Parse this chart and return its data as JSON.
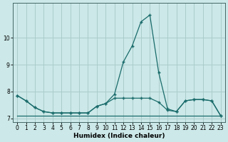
{
  "title": "",
  "xlabel": "Humidex (Indice chaleur)",
  "background_color": "#cce8e8",
  "grid_color": "#aacccc",
  "line_color": "#1a6b6b",
  "x": [
    0,
    1,
    2,
    3,
    4,
    5,
    6,
    7,
    8,
    9,
    10,
    11,
    12,
    13,
    14,
    15,
    16,
    17,
    18,
    19,
    20,
    21,
    22,
    23
  ],
  "y_flat": [
    7.1,
    7.1,
    7.1,
    7.1,
    7.1,
    7.1,
    7.1,
    7.1,
    7.1,
    7.1,
    7.1,
    7.1,
    7.1,
    7.1,
    7.1,
    7.1,
    7.1,
    7.1,
    7.1,
    7.1,
    7.1,
    7.1,
    7.1,
    7.1
  ],
  "y_mid": [
    7.85,
    7.65,
    7.4,
    7.25,
    7.2,
    7.2,
    7.2,
    7.2,
    7.2,
    7.45,
    7.55,
    7.75,
    7.75,
    7.75,
    7.75,
    7.75,
    7.6,
    7.3,
    7.25,
    7.65,
    7.7,
    7.7,
    7.65,
    7.1
  ],
  "y_spike": [
    7.85,
    7.65,
    7.4,
    7.25,
    7.2,
    7.2,
    7.2,
    7.2,
    7.2,
    7.45,
    7.55,
    7.9,
    9.1,
    9.7,
    10.6,
    10.85,
    8.7,
    7.35,
    7.25,
    7.65,
    7.7,
    7.7,
    7.65,
    7.1
  ],
  "ylim": [
    6.85,
    11.3
  ],
  "yticks": [
    7,
    8,
    9,
    10
  ],
  "xlim": [
    -0.5,
    23.5
  ],
  "xticks": [
    0,
    1,
    2,
    3,
    4,
    5,
    6,
    7,
    8,
    9,
    10,
    11,
    12,
    13,
    14,
    15,
    16,
    17,
    18,
    19,
    20,
    21,
    22,
    23
  ]
}
